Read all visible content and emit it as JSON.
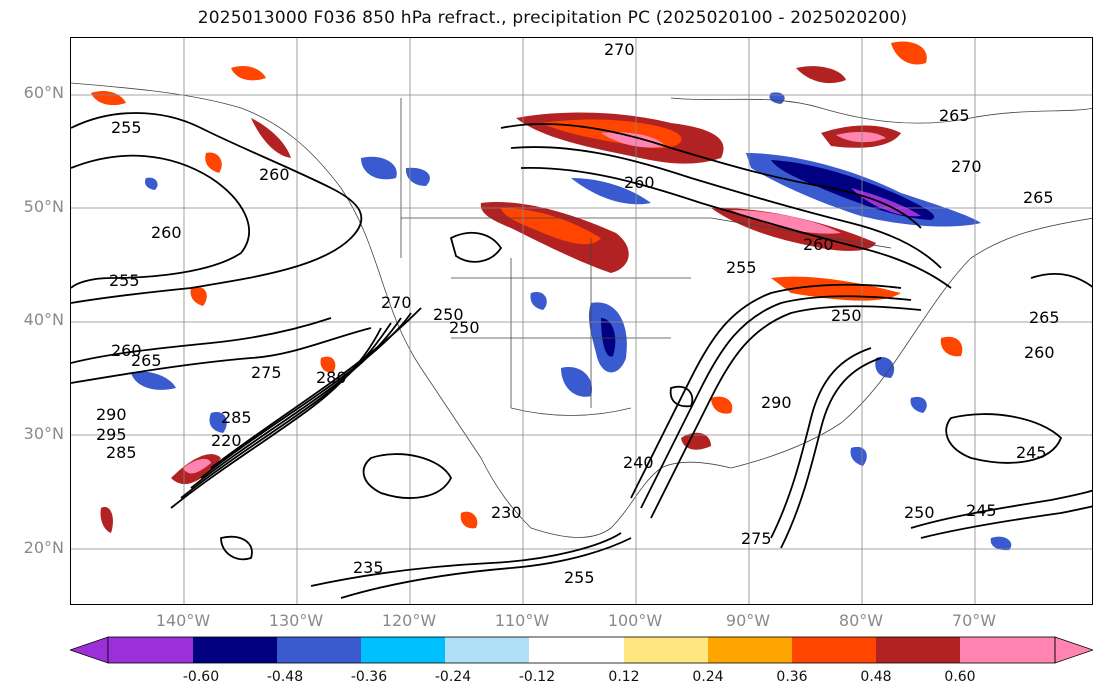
{
  "title": "2025013000 F036 850 hPa refract., precipitation PC (2025020100 - 2025020200)",
  "lat_labels": [
    "60°N",
    "50°N",
    "40°N",
    "30°N",
    "20°N"
  ],
  "lon_labels": [
    "140°W",
    "130°W",
    "120°W",
    "110°W",
    "100°W",
    "90°W",
    "80°W",
    "70°W"
  ],
  "colorbar": {
    "ticks": [
      "-0.60",
      "-0.48",
      "-0.36",
      "-0.24",
      "-0.12",
      "0.12",
      "0.24",
      "0.36",
      "0.48",
      "0.60"
    ],
    "colors": [
      "#9b30d8",
      "#000080",
      "#3a5bd0",
      "#00bfff",
      "#b0e0f8",
      "#ffffff",
      "#ffe680",
      "#ffa500",
      "#ff4500",
      "#b22222",
      "#ff85b0"
    ]
  },
  "contour_labels": [
    "270",
    "265",
    "270",
    "265",
    "260",
    "260",
    "255",
    "250",
    "250",
    "260",
    "265",
    "260",
    "275",
    "285",
    "280",
    "270",
    "290",
    "295",
    "285",
    "260",
    "265",
    "260",
    "255",
    "240",
    "230",
    "250",
    "235",
    "220",
    "255",
    "245",
    "275",
    "290",
    "250",
    "245",
    "255"
  ],
  "colors": {
    "contour": "#000000",
    "grid": "#888888",
    "border": "#444444"
  }
}
